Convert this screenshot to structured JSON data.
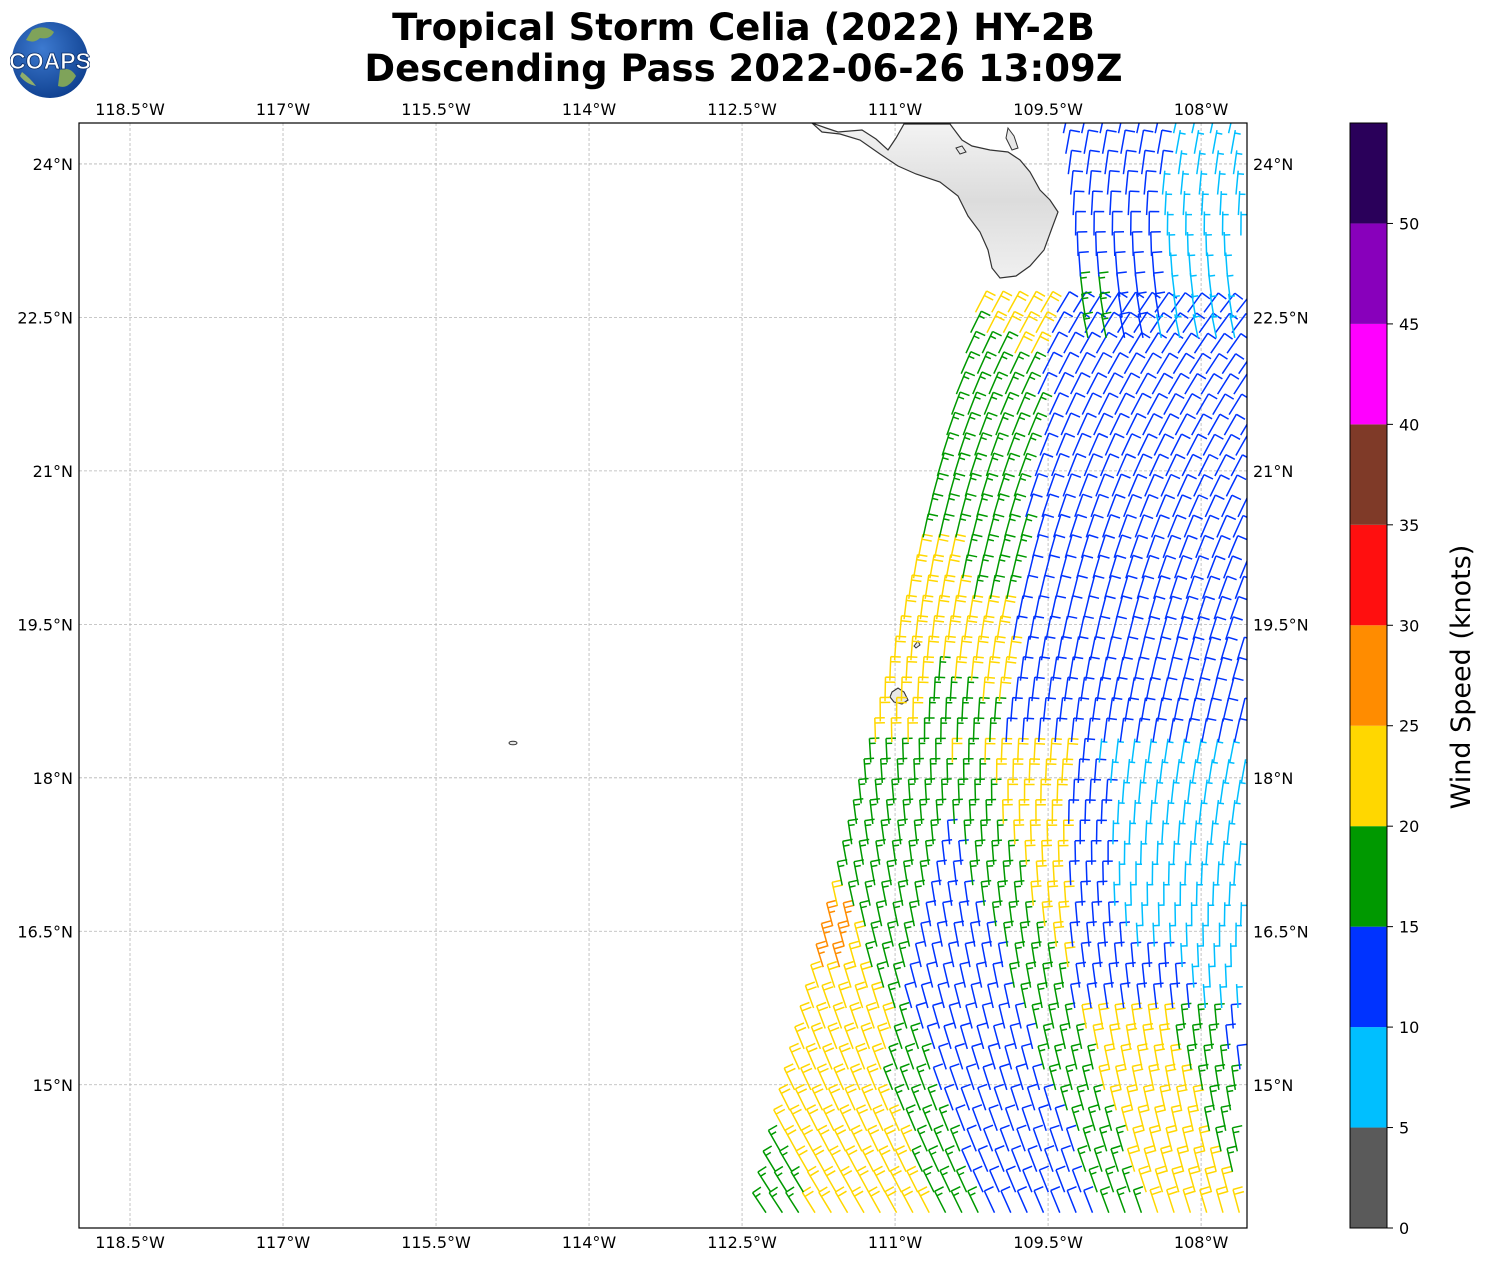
{
  "header": {
    "title_line1": "Tropical Storm Celia (2022) HY-2B",
    "title_line2": "Descending Pass 2022-06-26 13:09Z",
    "logo_text": "COAPS"
  },
  "map": {
    "lon_range": [
      -119.0,
      -107.55
    ],
    "lat_range": [
      13.6,
      24.4
    ],
    "lon_ticks": [
      {
        "value": -118.5,
        "label": "118.5°W"
      },
      {
        "value": -117.0,
        "label": "117°W"
      },
      {
        "value": -115.5,
        "label": "115.5°W"
      },
      {
        "value": -114.0,
        "label": "114°W"
      },
      {
        "value": -112.5,
        "label": "112.5°W"
      },
      {
        "value": -111.0,
        "label": "111°W"
      },
      {
        "value": -109.5,
        "label": "109.5°W"
      },
      {
        "value": -108.0,
        "label": "108°W"
      }
    ],
    "lat_ticks": [
      {
        "value": 24.0,
        "label": "24°N"
      },
      {
        "value": 22.5,
        "label": "22.5°N"
      },
      {
        "value": 21.0,
        "label": "21°N"
      },
      {
        "value": 19.5,
        "label": "19.5°N"
      },
      {
        "value": 18.0,
        "label": "18°N"
      },
      {
        "value": 16.5,
        "label": "16.5°N"
      },
      {
        "value": 15.0,
        "label": "15°N"
      }
    ],
    "gridlines": true,
    "land_color": "#e8e8e8",
    "coast_color": "#333333",
    "features": [
      "baja-california-peninsula",
      "isla-socorro",
      "isla-san-benedicto",
      "isla-clarion"
    ],
    "swath": {
      "edge_lon_south": -112.3,
      "edge_lon_north": -110.2,
      "south_lat": 13.6,
      "north_lat": 22.6,
      "northeast_start_lat": 24.3,
      "northeast_start_lon": -109.35
    }
  },
  "colorbar": {
    "label": "Wind Speed (knots)",
    "tick_labels": [
      "0",
      "5",
      "10",
      "15",
      "20",
      "25",
      "30",
      "35",
      "40",
      "45",
      "50"
    ],
    "max": 55,
    "bands": [
      {
        "from": 0,
        "to": 5,
        "color": "#5a5a5a"
      },
      {
        "from": 5,
        "to": 10,
        "color": "#00bfff"
      },
      {
        "from": 10,
        "to": 15,
        "color": "#0033ff"
      },
      {
        "from": 15,
        "to": 20,
        "color": "#009900"
      },
      {
        "from": 20,
        "to": 25,
        "color": "#ffd700"
      },
      {
        "from": 25,
        "to": 30,
        "color": "#ff8c00"
      },
      {
        "from": 30,
        "to": 35,
        "color": "#ff0f0f"
      },
      {
        "from": 35,
        "to": 40,
        "color": "#7f3a28"
      },
      {
        "from": 40,
        "to": 45,
        "color": "#ff00ff"
      },
      {
        "from": 45,
        "to": 50,
        "color": "#8800bb"
      },
      {
        "from": 50,
        "to": 55,
        "color": "#2a005a"
      }
    ]
  }
}
